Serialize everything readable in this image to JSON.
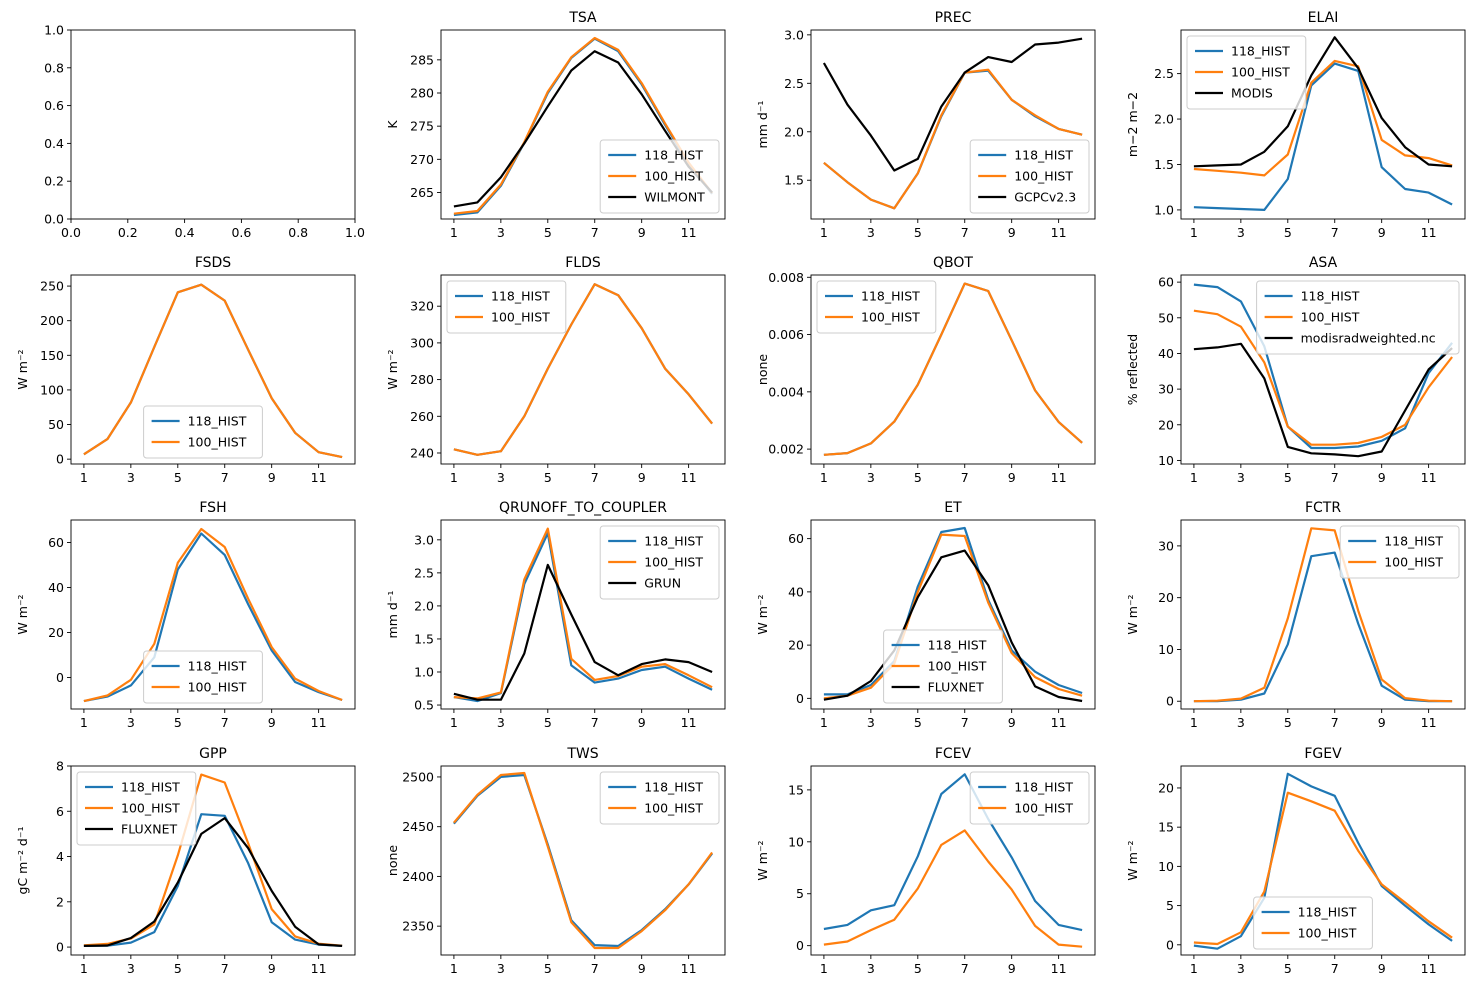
{
  "colors": {
    "blue": "#1f77b4",
    "orange": "#ff7f0e",
    "black": "#000000"
  },
  "chart_data": [
    {
      "type": "line",
      "title": "",
      "ylabel": "",
      "xlim": [
        0,
        1
      ],
      "ylim": [
        0,
        1
      ],
      "xticks": [
        0,
        0.2,
        0.4,
        0.6,
        0.8,
        1.0
      ],
      "xticklabels": [
        "0.0",
        "0.2",
        "0.4",
        "0.6",
        "0.8",
        "1.0"
      ],
      "yticks": [
        0,
        0.2,
        0.4,
        0.6,
        0.8,
        1.0
      ],
      "yticklabels": [
        "0.0",
        "0.2",
        "0.4",
        "0.6",
        "0.8",
        "1.0"
      ],
      "series": [],
      "legend": "none"
    },
    {
      "type": "line",
      "title": "TSA",
      "ylabel": "K",
      "ylim": [
        261,
        289.5
      ],
      "yticks": [
        265,
        270,
        275,
        280,
        285
      ],
      "yticklabels": [
        "265",
        "270",
        "275",
        "280",
        "285"
      ],
      "legend": "lower-right",
      "series": [
        {
          "name": "118_HIST",
          "color": "blue",
          "values": [
            261.6,
            262.0,
            266.0,
            272.5,
            280.0,
            285.3,
            288.2,
            286.3,
            281.3,
            275.2,
            269.3,
            264.8
          ]
        },
        {
          "name": "100_HIST",
          "color": "orange",
          "values": [
            261.8,
            262.2,
            266.2,
            272.6,
            280.2,
            285.4,
            288.3,
            286.5,
            281.5,
            275.4,
            269.5,
            264.9
          ]
        },
        {
          "name": "WILMONT",
          "color": "black",
          "values": [
            262.9,
            263.5,
            267.3,
            272.4,
            278.0,
            283.4,
            286.3,
            284.6,
            279.8,
            274.3,
            268.9,
            265.0
          ]
        }
      ]
    },
    {
      "type": "line",
      "title": "PREC",
      "ylabel": "mm d⁻¹",
      "ylim": [
        1.1,
        3.05
      ],
      "yticks": [
        1.5,
        2.0,
        2.5,
        3.0
      ],
      "yticklabels": [
        "1.5",
        "2.0",
        "2.5",
        "3.0"
      ],
      "legend": "lower-right",
      "series": [
        {
          "name": "118_HIST",
          "color": "blue",
          "values": [
            1.68,
            1.48,
            1.3,
            1.21,
            1.57,
            2.16,
            2.61,
            2.63,
            2.33,
            2.16,
            2.03,
            1.97
          ]
        },
        {
          "name": "100_HIST",
          "color": "orange",
          "values": [
            1.68,
            1.48,
            1.3,
            1.21,
            1.57,
            2.17,
            2.61,
            2.64,
            2.33,
            2.17,
            2.03,
            1.97
          ]
        },
        {
          "name": "GCPCv2.3",
          "color": "black",
          "values": [
            2.71,
            2.28,
            1.96,
            1.6,
            1.72,
            2.26,
            2.61,
            2.77,
            2.72,
            2.9,
            2.92,
            2.96
          ]
        }
      ]
    },
    {
      "type": "line",
      "title": "ELAI",
      "ylabel": "m−2 m−2",
      "ylim": [
        0.9,
        2.98
      ],
      "yticks": [
        1.0,
        1.5,
        2.0,
        2.5
      ],
      "yticklabels": [
        "1.0",
        "1.5",
        "2.0",
        "2.5"
      ],
      "legend": "upper-left",
      "series": [
        {
          "name": "118_HIST",
          "color": "blue",
          "values": [
            1.03,
            1.02,
            1.01,
            1.0,
            1.34,
            2.37,
            2.61,
            2.53,
            1.47,
            1.23,
            1.19,
            1.06
          ]
        },
        {
          "name": "100_HIST",
          "color": "orange",
          "values": [
            1.45,
            1.43,
            1.41,
            1.38,
            1.61,
            2.4,
            2.64,
            2.58,
            1.77,
            1.6,
            1.57,
            1.49
          ]
        },
        {
          "name": "MODIS",
          "color": "black",
          "values": [
            1.48,
            1.49,
            1.5,
            1.64,
            1.92,
            2.48,
            2.9,
            2.56,
            2.01,
            1.69,
            1.5,
            1.48
          ]
        }
      ]
    },
    {
      "type": "line",
      "title": "FSDS",
      "ylabel": "W m⁻²",
      "ylim": [
        -7,
        266
      ],
      "yticks": [
        0,
        50,
        100,
        150,
        200,
        250
      ],
      "yticklabels": [
        "0",
        "50",
        "100",
        "150",
        "200",
        "250"
      ],
      "legend": "lower-center",
      "series": [
        {
          "name": "118_HIST",
          "color": "blue",
          "values": [
            7,
            29,
            82,
            162,
            241,
            252,
            229,
            158,
            88,
            38,
            10,
            3
          ]
        },
        {
          "name": "100_HIST",
          "color": "orange",
          "values": [
            7,
            29,
            82,
            162,
            241,
            252,
            229,
            158,
            88,
            38,
            10,
            3
          ]
        }
      ]
    },
    {
      "type": "line",
      "title": "FLDS",
      "ylabel": "W m⁻²",
      "ylim": [
        234,
        337
      ],
      "yticks": [
        240,
        260,
        280,
        300,
        320
      ],
      "yticklabels": [
        "240",
        "260",
        "280",
        "300",
        "320"
      ],
      "legend": "upper-left",
      "series": [
        {
          "name": "118_HIST",
          "color": "blue",
          "values": [
            242,
            239,
            241,
            260,
            286,
            310,
            332,
            326,
            308,
            286,
            272,
            256
          ]
        },
        {
          "name": "100_HIST",
          "color": "orange",
          "values": [
            242,
            239,
            241,
            260,
            286,
            310,
            332,
            326,
            308,
            286,
            272,
            256
          ]
        }
      ]
    },
    {
      "type": "line",
      "title": "QBOT",
      "ylabel": "none",
      "ylim": [
        0.00148,
        0.00808
      ],
      "yticks": [
        0.002,
        0.004,
        0.006,
        0.008
      ],
      "yticklabels": [
        "0.002",
        "0.004",
        "0.006",
        "0.008"
      ],
      "legend": "upper-left",
      "series": [
        {
          "name": "118_HIST",
          "color": "blue",
          "values": [
            0.0018,
            0.00186,
            0.0022,
            0.00296,
            0.00425,
            0.006,
            0.00778,
            0.00752,
            0.0058,
            0.00405,
            0.00295,
            0.00222
          ]
        },
        {
          "name": "100_HIST",
          "color": "orange",
          "values": [
            0.0018,
            0.00186,
            0.0022,
            0.00296,
            0.00425,
            0.006,
            0.00778,
            0.00752,
            0.0058,
            0.00405,
            0.00295,
            0.00222
          ]
        }
      ]
    },
    {
      "type": "line",
      "title": "ASA",
      "ylabel": "% reflected",
      "ylim": [
        9,
        62
      ],
      "yticks": [
        10,
        20,
        30,
        40,
        50,
        60
      ],
      "yticklabels": [
        "10",
        "20",
        "30",
        "40",
        "50",
        "60"
      ],
      "legend": "upper-right",
      "series": [
        {
          "name": "118_HIST",
          "color": "blue",
          "values": [
            59.3,
            58.6,
            54.6,
            42.0,
            19.5,
            13.5,
            13.5,
            13.9,
            15.5,
            19.0,
            34.5,
            43.0
          ]
        },
        {
          "name": "100_HIST",
          "color": "orange",
          "values": [
            52.0,
            51.0,
            47.5,
            37.5,
            19.5,
            14.4,
            14.4,
            14.9,
            16.6,
            20.0,
            30.5,
            39.0
          ]
        },
        {
          "name": "modisradweighted.nc",
          "color": "black",
          "values": [
            41.2,
            41.7,
            42.7,
            33.0,
            13.8,
            12.0,
            11.7,
            11.2,
            12.5,
            24.0,
            35.5,
            41.5
          ]
        }
      ]
    },
    {
      "type": "line",
      "title": "FSH",
      "ylabel": "W m⁻²",
      "ylim": [
        -14,
        70
      ],
      "yticks": [
        0,
        20,
        40,
        60
      ],
      "yticklabels": [
        "0",
        "20",
        "40",
        "60"
      ],
      "legend": "lower-center",
      "series": [
        {
          "name": "118_HIST",
          "color": "blue",
          "values": [
            -10.5,
            -8.5,
            -3.5,
            9.0,
            48.0,
            64.0,
            54.5,
            32.5,
            12.0,
            -2.0,
            -6.5,
            -10.0
          ]
        },
        {
          "name": "100_HIST",
          "color": "orange",
          "values": [
            -10.5,
            -8.0,
            -1.0,
            15.0,
            51.0,
            66.0,
            58.0,
            35.0,
            13.5,
            -0.5,
            -6.0,
            -10.0
          ]
        }
      ]
    },
    {
      "type": "line",
      "title": "QRUNOFF_TO_COUPLER",
      "ylabel": "mm d⁻¹",
      "ylim": [
        0.44,
        3.3
      ],
      "yticks": [
        0.5,
        1.0,
        1.5,
        2.0,
        2.5,
        3.0
      ],
      "yticklabels": [
        "0.5",
        "1.0",
        "1.5",
        "2.0",
        "2.5",
        "3.0"
      ],
      "legend": "upper-right",
      "series": [
        {
          "name": "118_HIST",
          "color": "blue",
          "values": [
            0.62,
            0.56,
            0.68,
            2.33,
            3.1,
            1.1,
            0.84,
            0.9,
            1.03,
            1.08,
            0.9,
            0.73
          ]
        },
        {
          "name": "100_HIST",
          "color": "orange",
          "values": [
            0.62,
            0.6,
            0.69,
            2.4,
            3.17,
            1.2,
            0.88,
            0.94,
            1.08,
            1.12,
            0.95,
            0.77
          ]
        },
        {
          "name": "GRUN",
          "color": "black",
          "values": [
            0.67,
            0.58,
            0.58,
            1.28,
            2.62,
            1.87,
            1.15,
            0.95,
            1.12,
            1.19,
            1.15,
            1.0
          ]
        }
      ]
    },
    {
      "type": "line",
      "title": "ET",
      "ylabel": "W m⁻²",
      "ylim": [
        -4,
        67
      ],
      "yticks": [
        0,
        20,
        40,
        60
      ],
      "yticklabels": [
        "0",
        "20",
        "40",
        "60"
      ],
      "legend": "lower-center",
      "series": [
        {
          "name": "118_HIST",
          "color": "blue",
          "values": [
            1.5,
            1.5,
            5.0,
            14.0,
            42.0,
            62.5,
            64.0,
            37.0,
            18.0,
            10.0,
            5.0,
            2.0
          ]
        },
        {
          "name": "100_HIST",
          "color": "orange",
          "values": [
            0.0,
            1.0,
            4.0,
            13.0,
            40.0,
            61.5,
            61.0,
            36.0,
            17.0,
            8.0,
            3.5,
            1.0
          ]
        },
        {
          "name": "FLUXNET",
          "color": "black",
          "values": [
            -0.5,
            1.0,
            6.5,
            18.0,
            38.0,
            53.0,
            55.5,
            42.5,
            21.0,
            4.5,
            0.5,
            -1.0
          ]
        }
      ]
    },
    {
      "type": "line",
      "title": "FCTR",
      "ylabel": "W m⁻²",
      "ylim": [
        -1.5,
        35
      ],
      "yticks": [
        0,
        10,
        20,
        30
      ],
      "yticklabels": [
        "0",
        "10",
        "20",
        "30"
      ],
      "legend": "upper-right",
      "series": [
        {
          "name": "118_HIST",
          "color": "blue",
          "values": [
            0.0,
            0.0,
            0.3,
            1.5,
            11.0,
            28.0,
            28.7,
            15.0,
            3.0,
            0.3,
            0.0,
            0.0
          ]
        },
        {
          "name": "100_HIST",
          "color": "orange",
          "values": [
            0.0,
            0.1,
            0.5,
            2.6,
            16.0,
            33.4,
            33.0,
            17.5,
            4.2,
            0.6,
            0.1,
            0.0
          ]
        }
      ]
    },
    {
      "type": "line",
      "title": "GPP",
      "ylabel": "gC m⁻² d⁻¹",
      "ylim": [
        -0.35,
        8.0
      ],
      "yticks": [
        0,
        2,
        4,
        6,
        8
      ],
      "yticklabels": [
        "0",
        "2",
        "4",
        "6",
        "8"
      ],
      "legend": "upper-left",
      "series": [
        {
          "name": "118_HIST",
          "color": "blue",
          "values": [
            0.05,
            0.06,
            0.2,
            0.66,
            2.7,
            5.87,
            5.8,
            3.7,
            1.1,
            0.33,
            0.11,
            0.05
          ]
        },
        {
          "name": "100_HIST",
          "color": "orange",
          "values": [
            0.08,
            0.14,
            0.38,
            1.0,
            4.05,
            7.62,
            7.27,
            4.58,
            1.68,
            0.47,
            0.15,
            0.06
          ]
        },
        {
          "name": "FLUXNET",
          "color": "black",
          "values": [
            0.05,
            0.07,
            0.4,
            1.13,
            2.85,
            5.0,
            5.7,
            4.37,
            2.48,
            0.9,
            0.12,
            0.05
          ]
        }
      ]
    },
    {
      "type": "line",
      "title": "TWS",
      "ylabel": "none",
      "ylim": [
        2321,
        2511
      ],
      "yticks": [
        2350,
        2400,
        2450,
        2500
      ],
      "yticklabels": [
        "2350",
        "2400",
        "2450",
        "2500"
      ],
      "legend": "upper-right",
      "series": [
        {
          "name": "118_HIST",
          "color": "blue",
          "values": [
            2453,
            2481,
            2500,
            2502,
            2432,
            2356,
            2331,
            2330,
            2346,
            2367,
            2392,
            2423
          ]
        },
        {
          "name": "100_HIST",
          "color": "orange",
          "values": [
            2454,
            2482,
            2502,
            2504,
            2430,
            2354,
            2328,
            2328,
            2345,
            2366,
            2392,
            2424
          ]
        }
      ]
    },
    {
      "type": "line",
      "title": "FCEV",
      "ylabel": "W m⁻²",
      "ylim": [
        -0.9,
        17.3
      ],
      "yticks": [
        0,
        5,
        10,
        15
      ],
      "yticklabels": [
        "0",
        "5",
        "10",
        "15"
      ],
      "legend": "upper-right",
      "series": [
        {
          "name": "118_HIST",
          "color": "blue",
          "values": [
            1.6,
            2.0,
            3.4,
            3.9,
            8.6,
            14.6,
            16.5,
            12.2,
            8.5,
            4.3,
            2.0,
            1.5
          ]
        },
        {
          "name": "100_HIST",
          "color": "orange",
          "values": [
            0.1,
            0.4,
            1.5,
            2.5,
            5.5,
            9.7,
            11.1,
            8.1,
            5.4,
            1.9,
            0.1,
            -0.1
          ]
        }
      ]
    },
    {
      "type": "line",
      "title": "FGEV",
      "ylabel": "W m⁻²",
      "ylim": [
        -1.3,
        22.8
      ],
      "yticks": [
        0,
        5,
        10,
        15,
        20
      ],
      "yticklabels": [
        "0",
        "5",
        "10",
        "15",
        "20"
      ],
      "legend": "lower-center",
      "series": [
        {
          "name": "118_HIST",
          "color": "blue",
          "values": [
            -0.1,
            -0.5,
            1.1,
            6.0,
            21.8,
            20.2,
            19.0,
            13.0,
            7.5,
            5.0,
            2.6,
            0.5
          ]
        },
        {
          "name": "100_HIST",
          "color": "orange",
          "values": [
            0.3,
            0.1,
            1.6,
            6.8,
            19.4,
            18.3,
            17.1,
            12.0,
            7.7,
            5.4,
            3.0,
            0.9
          ]
        }
      ]
    }
  ],
  "month_ticks": [
    1,
    3,
    5,
    7,
    9,
    11
  ],
  "month_ticklabels": [
    "1",
    "3",
    "5",
    "7",
    "9",
    "11"
  ]
}
